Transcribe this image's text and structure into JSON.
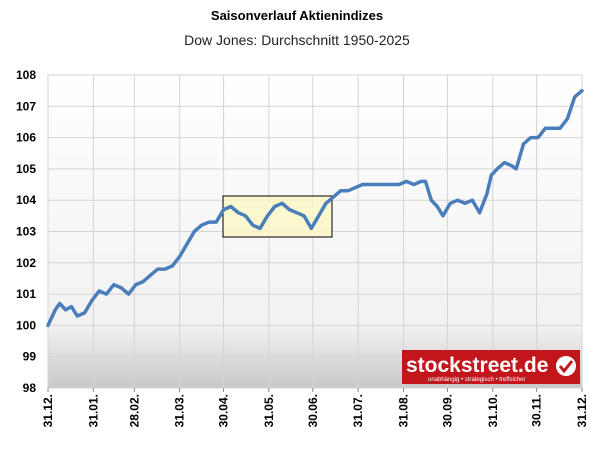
{
  "chart_data": {
    "type": "line",
    "title": "Saisonverlauf Aktienindizes",
    "subtitle": "Dow Jones: Durchschnitt 1950-2025",
    "logo_text": "stockstreet.de",
    "logo_tagline": "unabhängig • strategisch • treffsicher",
    "x": [
      0,
      5,
      8,
      12,
      16,
      20,
      25,
      30,
      35,
      40,
      45,
      50,
      55,
      60,
      65,
      70,
      75,
      80,
      85,
      90,
      95,
      100,
      105,
      110,
      115,
      120,
      125,
      130,
      135,
      140,
      145,
      150,
      155,
      160,
      165,
      170,
      175,
      180,
      185,
      190,
      195,
      200,
      205,
      210,
      215,
      220,
      225,
      230,
      235,
      240,
      245,
      250,
      255,
      258,
      262,
      266,
      270,
      275,
      280,
      285,
      290,
      295,
      300,
      303,
      307,
      312,
      317,
      320,
      325,
      330,
      335,
      340,
      345,
      350,
      355,
      360,
      365
    ],
    "series": [
      {
        "name": "Dow Jones",
        "color": "#4a7ebb",
        "values": [
          100.0,
          100.5,
          100.7,
          100.5,
          100.6,
          100.3,
          100.4,
          100.8,
          101.1,
          101.0,
          101.3,
          101.2,
          101.0,
          101.3,
          101.4,
          101.6,
          101.8,
          101.8,
          101.9,
          102.2,
          102.6,
          103.0,
          103.2,
          103.3,
          103.3,
          103.7,
          103.8,
          103.6,
          103.5,
          103.2,
          103.1,
          103.5,
          103.8,
          103.9,
          103.7,
          103.6,
          103.5,
          103.1,
          103.5,
          103.9,
          104.1,
          104.3,
          104.3,
          104.4,
          104.5,
          104.5,
          104.5,
          104.5,
          104.5,
          104.5,
          104.6,
          104.5,
          104.6,
          104.6,
          104.0,
          103.8,
          103.5,
          103.9,
          104.0,
          103.9,
          104.0,
          103.6,
          104.2,
          104.8,
          105.0,
          105.2,
          105.1,
          105.0,
          105.8,
          106.0,
          106.0,
          106.3,
          106.3,
          106.3,
          106.6,
          107.3,
          107.5
        ]
      }
    ],
    "xlim": [
      0,
      365
    ],
    "xticks": [
      {
        "value": 0,
        "label": "31.12."
      },
      {
        "value": 31,
        "label": "31.01."
      },
      {
        "value": 59,
        "label": "28.02."
      },
      {
        "value": 90,
        "label": "31.03."
      },
      {
        "value": 120,
        "label": "30.04."
      },
      {
        "value": 151,
        "label": "31.05."
      },
      {
        "value": 181,
        "label": "30.06."
      },
      {
        "value": 212,
        "label": "31.07."
      },
      {
        "value": 243,
        "label": "31.08."
      },
      {
        "value": 273,
        "label": "30.09."
      },
      {
        "value": 304,
        "label": "31.10."
      },
      {
        "value": 334,
        "label": "30.11."
      },
      {
        "value": 365,
        "label": "31.12."
      }
    ],
    "ylim": [
      98,
      108
    ],
    "yticks": [
      98,
      99,
      100,
      101,
      102,
      103,
      104,
      105,
      106,
      107,
      108
    ],
    "grid": true
  }
}
